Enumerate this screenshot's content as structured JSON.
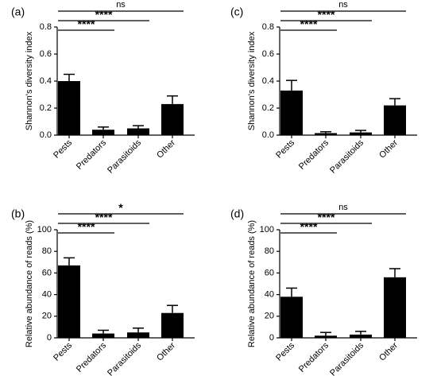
{
  "chart_data": [
    {
      "panel": "(a)",
      "type": "bar",
      "categories": [
        "Pests",
        "Predators",
        "Parasitoids",
        "Other"
      ],
      "values": [
        0.4,
        0.04,
        0.05,
        0.23
      ],
      "errors": [
        0.05,
        0.02,
        0.02,
        0.06
      ],
      "ylabel": "Shannon's diversity index",
      "ylim": [
        0,
        0.8
      ],
      "yticks": [
        "0.0",
        "0.2",
        "0.4",
        "0.6",
        "0.8"
      ],
      "significance": [
        {
          "from": 0,
          "to": 3,
          "label": "ns"
        },
        {
          "from": 0,
          "to": 2,
          "label": "****"
        },
        {
          "from": 0,
          "to": 1,
          "label": "****"
        }
      ]
    },
    {
      "panel": "(c)",
      "type": "bar",
      "categories": [
        "Pests",
        "Predators",
        "Parasitoids",
        "Other"
      ],
      "values": [
        0.33,
        0.015,
        0.02,
        0.22
      ],
      "errors": [
        0.075,
        0.01,
        0.015,
        0.05
      ],
      "ylabel": "Shannon's diversity index",
      "ylim": [
        0,
        0.8
      ],
      "yticks": [
        "0.0",
        "0.2",
        "0.4",
        "0.6",
        "0.8"
      ],
      "significance": [
        {
          "from": 0,
          "to": 3,
          "label": "ns"
        },
        {
          "from": 0,
          "to": 2,
          "label": "****"
        },
        {
          "from": 0,
          "to": 1,
          "label": "****"
        }
      ]
    },
    {
      "panel": "(b)",
      "type": "bar",
      "categories": [
        "Pests",
        "Predators",
        "Parasitoids",
        "Other"
      ],
      "values": [
        67,
        4,
        5,
        23
      ],
      "errors": [
        7,
        3,
        4,
        7
      ],
      "ylabel": "Relative abundance of reads (%)",
      "ylim": [
        0,
        100
      ],
      "yticks": [
        "0",
        "20",
        "40",
        "60",
        "80",
        "100"
      ],
      "significance": [
        {
          "from": 0,
          "to": 3,
          "label": "*"
        },
        {
          "from": 0,
          "to": 2,
          "label": "****"
        },
        {
          "from": 0,
          "to": 1,
          "label": "****"
        }
      ]
    },
    {
      "panel": "(d)",
      "type": "bar",
      "categories": [
        "Pests",
        "Predators",
        "Parasitoids",
        "Other"
      ],
      "values": [
        38,
        2,
        3,
        56
      ],
      "errors": [
        8,
        3,
        3,
        8
      ],
      "ylabel": "Relative abundance of reads (%)",
      "ylim": [
        0,
        100
      ],
      "yticks": [
        "0",
        "20",
        "40",
        "60",
        "80",
        "100"
      ],
      "significance": [
        {
          "from": 0,
          "to": 3,
          "label": "ns"
        },
        {
          "from": 0,
          "to": 2,
          "label": "****"
        },
        {
          "from": 0,
          "to": 1,
          "label": "****"
        }
      ]
    }
  ]
}
